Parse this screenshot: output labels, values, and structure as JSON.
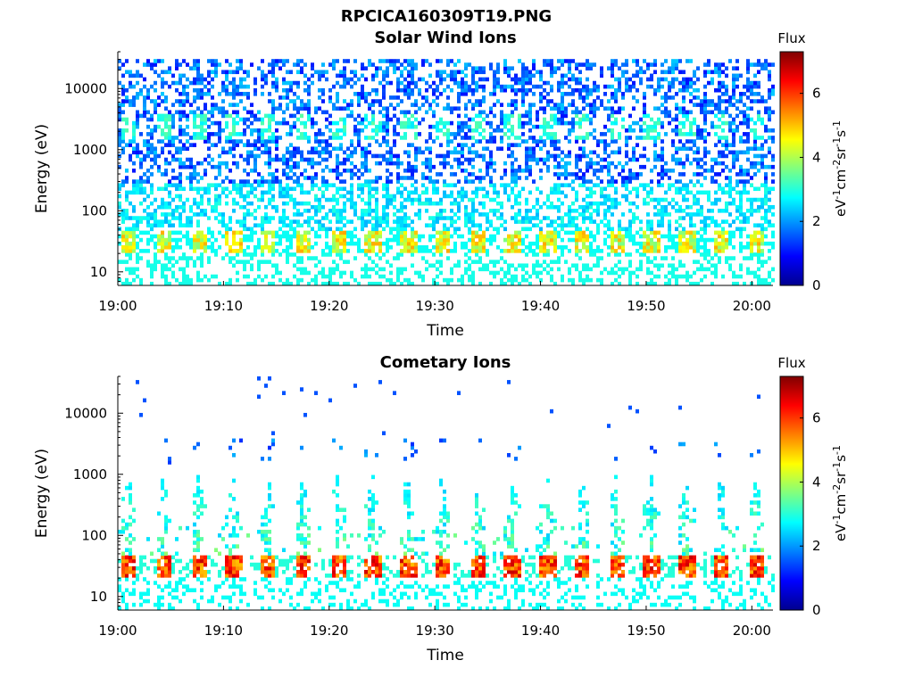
{
  "figure_title": "RPCICA160309T19.PNG",
  "chart_data": [
    {
      "type": "heatmap",
      "title": "Solar Wind Ions",
      "xlabel": "Time",
      "ylabel": "Energy (eV)",
      "x_range_minutes": [
        0,
        62
      ],
      "x_ticks": [
        "19:00",
        "19:10",
        "19:20",
        "19:30",
        "19:40",
        "19:50",
        "20:00"
      ],
      "y_scale": "log",
      "ylim": [
        6,
        40000
      ],
      "y_ticks": [
        10,
        100,
        1000,
        10000
      ],
      "y_tick_labels": [
        "10",
        "100",
        "1000",
        "10000"
      ],
      "colorbar": {
        "title": "Flux",
        "label": "eV-1cm-2sr-1s-1",
        "range": [
          0,
          7.3
        ],
        "ticks": [
          0,
          2,
          4,
          6
        ],
        "colormap": "jet"
      },
      "pulse_period_minutes": 3.3,
      "bands": [
        {
          "energy_eV": 32,
          "flux": 4.5,
          "note": "yellow-green band in bursts"
        },
        {
          "energy_eV": 2500,
          "flux": 2.8,
          "note": "cyan patches near 1-3 keV"
        },
        {
          "energy_eV_range": [
            6,
            40000
          ],
          "flux": 1.5,
          "note": "scattered blue background"
        }
      ]
    },
    {
      "type": "heatmap",
      "title": "Cometary Ions",
      "xlabel": "Time",
      "ylabel": "Energy (eV)",
      "x_range_minutes": [
        0,
        62
      ],
      "x_ticks": [
        "19:00",
        "19:10",
        "19:20",
        "19:30",
        "19:40",
        "19:50",
        "20:00"
      ],
      "y_scale": "log",
      "ylim": [
        6,
        40000
      ],
      "y_ticks": [
        10,
        100,
        1000,
        10000
      ],
      "y_tick_labels": [
        "10",
        "100",
        "1000",
        "10000"
      ],
      "colorbar": {
        "title": "Flux",
        "label": "eV-1cm-2sr-1s-1",
        "range": [
          0,
          7.3
        ],
        "ticks": [
          0,
          2,
          4,
          6
        ],
        "colormap": "jet"
      },
      "pulse_period_minutes": 3.3,
      "bands": [
        {
          "energy_eV": 30,
          "flux": 6.0,
          "note": "orange-red band in bursts"
        },
        {
          "energy_eV_range": [
            50,
            1000
          ],
          "flux": 3.5,
          "note": "green plumes rising from the band"
        }
      ]
    }
  ]
}
